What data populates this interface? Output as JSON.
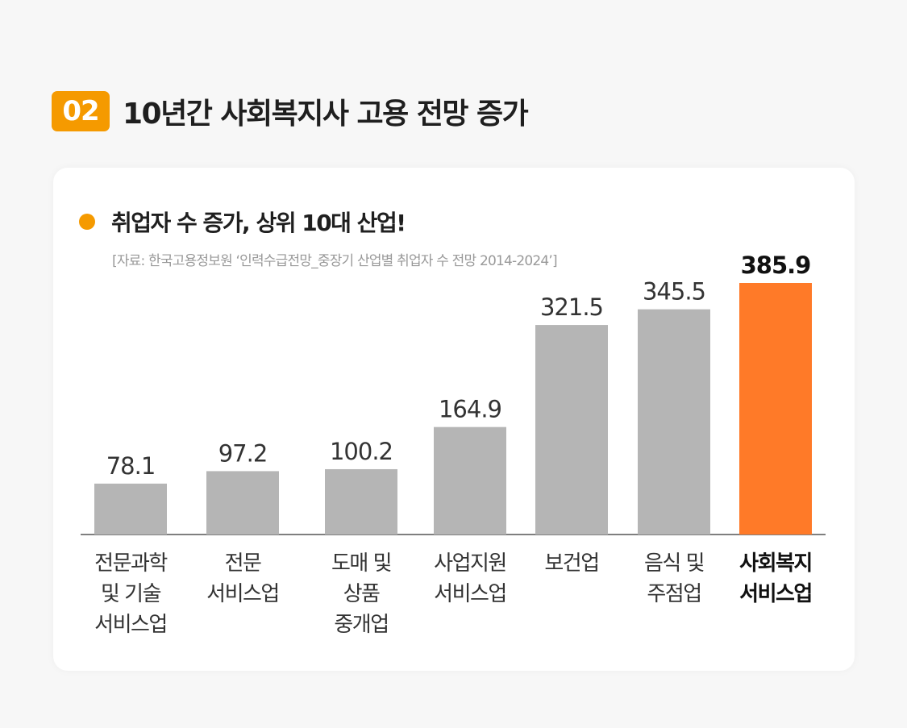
{
  "header": {
    "number": "02",
    "title": "10년간 사회복지사 고용 전망 증가"
  },
  "card": {
    "subtitle": "취업자 수 증가, 상위 10대 산업!",
    "source": "[자료: 한국고용정보원 ‘인력수급전망_중장기 산업별 취업자 수 전망 2014-2024’]"
  },
  "colors": {
    "accent": "#f59a00",
    "bar": "#b5b5b5",
    "highlight_bar": "#ff7a28"
  },
  "chart_data": {
    "type": "bar",
    "categories": [
      "전문과학\n및 기술\n서비스업",
      "전문\n서비스업",
      "도매 및\n상품\n중개업",
      "사업지원\n서비스업",
      "보건업",
      "음식 및\n주점업",
      "사회복지\n서비스업"
    ],
    "values": [
      78.1,
      97.2,
      100.2,
      164.9,
      321.5,
      345.5,
      385.9
    ],
    "value_labels": [
      "78.1",
      "97.2",
      "100.2",
      "164.9",
      "321.5",
      "345.5",
      "385.9"
    ],
    "highlight_index": 6,
    "title": "취업자 수 증가, 상위 10대 산업!",
    "xlabel": "",
    "ylabel": "",
    "ylim": [
      0,
      385.9
    ],
    "grid": false
  }
}
